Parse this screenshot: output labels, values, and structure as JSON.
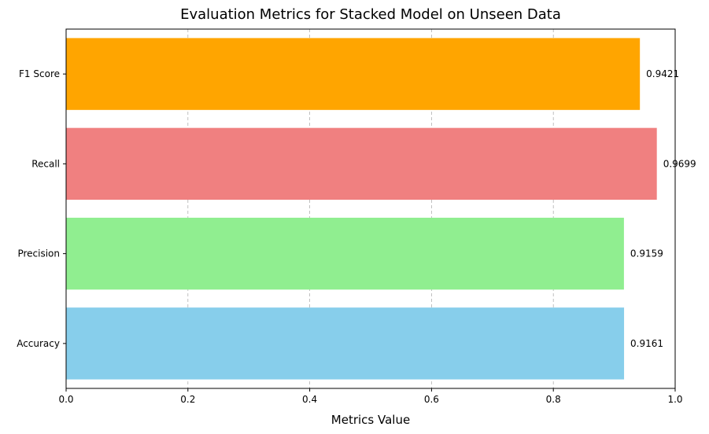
{
  "chart_data": {
    "type": "bar",
    "orientation": "horizontal",
    "title": "Evaluation Metrics for Stacked Model on Unseen Data",
    "xlabel": "Metrics Value",
    "ylabel": "",
    "xlim": [
      0,
      1.0
    ],
    "x_ticks": [
      0,
      0.2,
      0.4,
      0.6,
      0.8,
      1.0
    ],
    "x_tick_labels": [
      "0.0",
      "0.2",
      "0.4",
      "0.6",
      "0.8",
      "1.0"
    ],
    "grid": "vertical-dashed",
    "categories": [
      "Accuracy",
      "Precision",
      "Recall",
      "F1 Score"
    ],
    "values": [
      0.9161,
      0.9159,
      0.9699,
      0.9421
    ],
    "value_labels": [
      "0.9161",
      "0.9159",
      "0.9699",
      "0.9421"
    ],
    "colors": [
      "#87ceeb",
      "#90ee90",
      "#f08080",
      "#ffa500"
    ]
  }
}
